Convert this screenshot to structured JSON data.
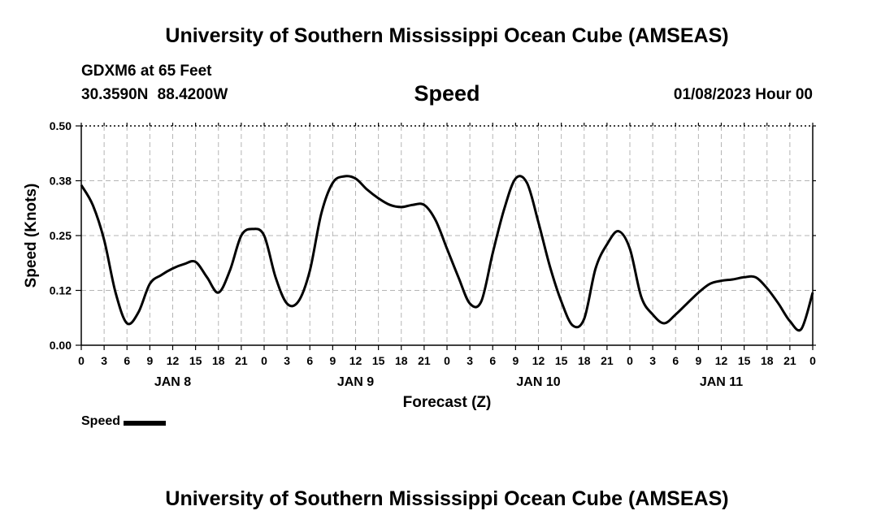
{
  "header": {
    "title": "University of Southern Mississippi Ocean Cube (AMSEAS)",
    "station": "GDXM6 at 65 Feet",
    "coordinates": "30.3590N 88.4200W",
    "chart_title": "Speed",
    "date": "01/08/2023 Hour 00"
  },
  "footer": {
    "title": "University of Southern Mississippi Ocean Cube (AMSEAS)"
  },
  "chart_data": {
    "type": "line",
    "title": "Speed",
    "xlabel": "Forecast (Z)",
    "ylabel": "Speed (Knots)",
    "ylim": [
      0,
      0.5
    ],
    "xlim": [
      0,
      96
    ],
    "y_ticks": [
      "0.00",
      "0.12",
      "0.25",
      "0.38",
      "0.50"
    ],
    "x_tick_labels": [
      "0",
      "3",
      "6",
      "9",
      "12",
      "15",
      "18",
      "21",
      "0",
      "3",
      "6",
      "9",
      "12",
      "15",
      "18",
      "21",
      "0",
      "3",
      "6",
      "9",
      "12",
      "15",
      "18",
      "21",
      "0",
      "3",
      "6",
      "9",
      "12",
      "15",
      "18",
      "21",
      "0"
    ],
    "day_labels": [
      {
        "label": "JAN 8",
        "hour": 12
      },
      {
        "label": "JAN 9",
        "hour": 36
      },
      {
        "label": "JAN 10",
        "hour": 60
      },
      {
        "label": "JAN 11",
        "hour": 84
      }
    ],
    "grid": true,
    "legend": "bottom-left",
    "series": [
      {
        "name": "Speed",
        "color": "#000000",
        "x": [
          0,
          1.5,
          3,
          4.5,
          6,
          7.5,
          9,
          10.5,
          12,
          13.5,
          15,
          16.5,
          18,
          19.5,
          21,
          22.5,
          24,
          25.5,
          27,
          28.5,
          30,
          31.5,
          33,
          34.5,
          36,
          37.5,
          39,
          40.5,
          42,
          43.5,
          45,
          46.5,
          48,
          49.5,
          51,
          52.5,
          54,
          55.5,
          57,
          58.5,
          60,
          61.5,
          63,
          64.5,
          66,
          67.5,
          69,
          70.5,
          72,
          73.5,
          75,
          76.5,
          78,
          79.5,
          81,
          82.5,
          84,
          85.5,
          87,
          88.5,
          90,
          91.5,
          93,
          94.5,
          96
        ],
        "values": [
          0.365,
          0.32,
          0.24,
          0.12,
          0.05,
          0.075,
          0.14,
          0.16,
          0.175,
          0.185,
          0.19,
          0.155,
          0.12,
          0.17,
          0.25,
          0.265,
          0.25,
          0.155,
          0.095,
          0.1,
          0.17,
          0.3,
          0.37,
          0.385,
          0.38,
          0.355,
          0.335,
          0.32,
          0.315,
          0.32,
          0.32,
          0.285,
          0.22,
          0.155,
          0.095,
          0.1,
          0.21,
          0.31,
          0.38,
          0.37,
          0.28,
          0.18,
          0.1,
          0.045,
          0.06,
          0.175,
          0.23,
          0.26,
          0.22,
          0.11,
          0.07,
          0.05,
          0.07,
          0.095,
          0.12,
          0.14,
          0.147,
          0.15,
          0.155,
          0.155,
          0.13,
          0.095,
          0.055,
          0.037,
          0.12
        ]
      }
    ]
  },
  "legend": {
    "label": "Speed"
  }
}
